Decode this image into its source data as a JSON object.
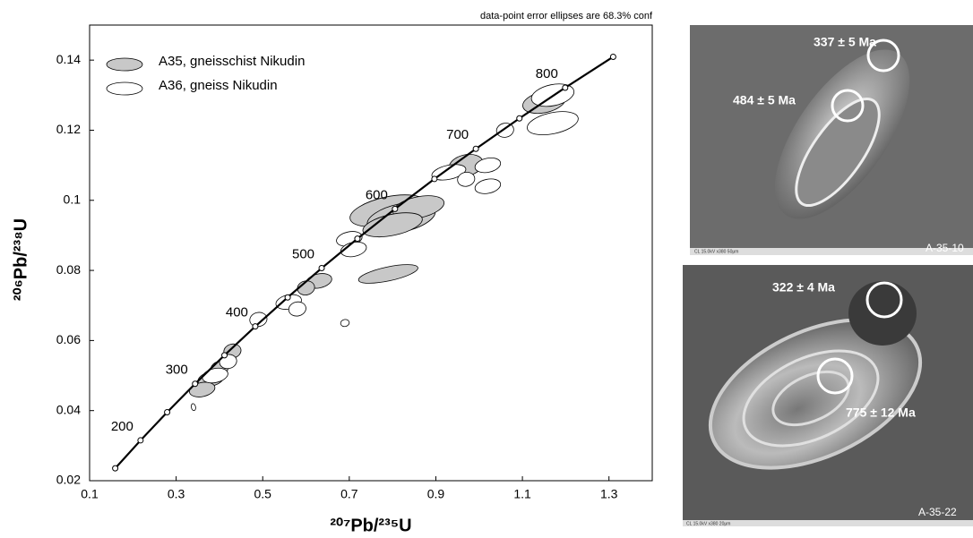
{
  "chart_data": {
    "type": "scatter",
    "note": "data-point error ellipses are 68.3% conf",
    "x_label": "²⁰⁷Pb/²³⁵U",
    "y_label": "²⁰⁶Pb/²³⁸U",
    "xlim": [
      0.1,
      1.4
    ],
    "ylim": [
      0.02,
      0.15
    ],
    "xticks": [
      0.1,
      0.3,
      0.5,
      0.7,
      0.9,
      1.1,
      1.3
    ],
    "yticks": [
      0.02,
      0.04,
      0.06,
      0.08,
      0.1,
      0.12,
      0.14
    ],
    "concordia": {
      "color": "#000000",
      "x": [
        0.1592,
        0.2177,
        0.2792,
        0.3437,
        0.4116,
        0.4828,
        0.5577,
        0.6362,
        0.7188,
        0.8056,
        0.8967,
        0.9925,
        1.0931,
        1.1988,
        1.3097
      ],
      "values": [
        0.02354,
        0.03151,
        0.03954,
        0.04764,
        0.05579,
        0.06402,
        0.0723,
        0.08065,
        0.08906,
        0.09754,
        0.10609,
        0.1147,
        0.12338,
        0.13213,
        0.14094
      ],
      "labels": [
        null,
        200,
        null,
        300,
        null,
        400,
        null,
        500,
        null,
        600,
        null,
        700,
        null,
        800,
        null
      ]
    },
    "series": [
      {
        "name": "A35, gneisschist Nikudin",
        "color": "#c8c8c8",
        "x": [
          1.15,
          0.97,
          0.79,
          0.82,
          0.86,
          0.8,
          0.79,
          0.63,
          0.6,
          0.43,
          0.4,
          0.38,
          0.36
        ],
        "values": [
          0.128,
          0.11,
          0.097,
          0.095,
          0.098,
          0.093,
          0.079,
          0.077,
          0.075,
          0.057,
          0.052,
          0.049,
          0.046
        ],
        "x_err": [
          0.05,
          0.04,
          0.09,
          0.08,
          0.06,
          0.07,
          0.07,
          0.03,
          0.02,
          0.02,
          0.02,
          0.03,
          0.03
        ],
        "y_err": [
          0.003,
          0.003,
          0.004,
          0.004,
          0.003,
          0.003,
          0.002,
          0.002,
          0.002,
          0.002,
          0.002,
          0.002,
          0.002
        ]
      },
      {
        "name": "A36, gneiss Nikudin",
        "color": "#ffffff",
        "x": [
          1.17,
          1.17,
          1.06,
          0.93,
          1.02,
          1.02,
          0.97,
          0.7,
          0.71,
          0.56,
          0.58,
          0.69,
          0.49,
          0.42,
          0.39,
          0.34
        ],
        "values": [
          0.13,
          0.122,
          0.12,
          0.108,
          0.11,
          0.104,
          0.106,
          0.089,
          0.086,
          0.071,
          0.069,
          0.065,
          0.066,
          0.054,
          0.05,
          0.041
        ],
        "x_err": [
          0.05,
          0.06,
          0.02,
          0.04,
          0.03,
          0.03,
          0.02,
          0.03,
          0.03,
          0.03,
          0.02,
          0.01,
          0.02,
          0.02,
          0.03,
          0.005
        ],
        "y_err": [
          0.003,
          0.003,
          0.002,
          0.002,
          0.002,
          0.002,
          0.002,
          0.002,
          0.002,
          0.002,
          0.002,
          0.001,
          0.002,
          0.002,
          0.002,
          0.001
        ]
      }
    ]
  },
  "images": [
    {
      "spots": [
        "337 ± 5 Ma",
        "484 ± 5 Ma"
      ],
      "sample": "A-35-10",
      "scale": "CL 15.0kV x380 50μm"
    },
    {
      "spots": [
        "322 ± 4 Ma",
        "775 ± 12 Ma"
      ],
      "sample": "A-35-22",
      "scale": "CL 15.0kV x380 20μm"
    }
  ]
}
